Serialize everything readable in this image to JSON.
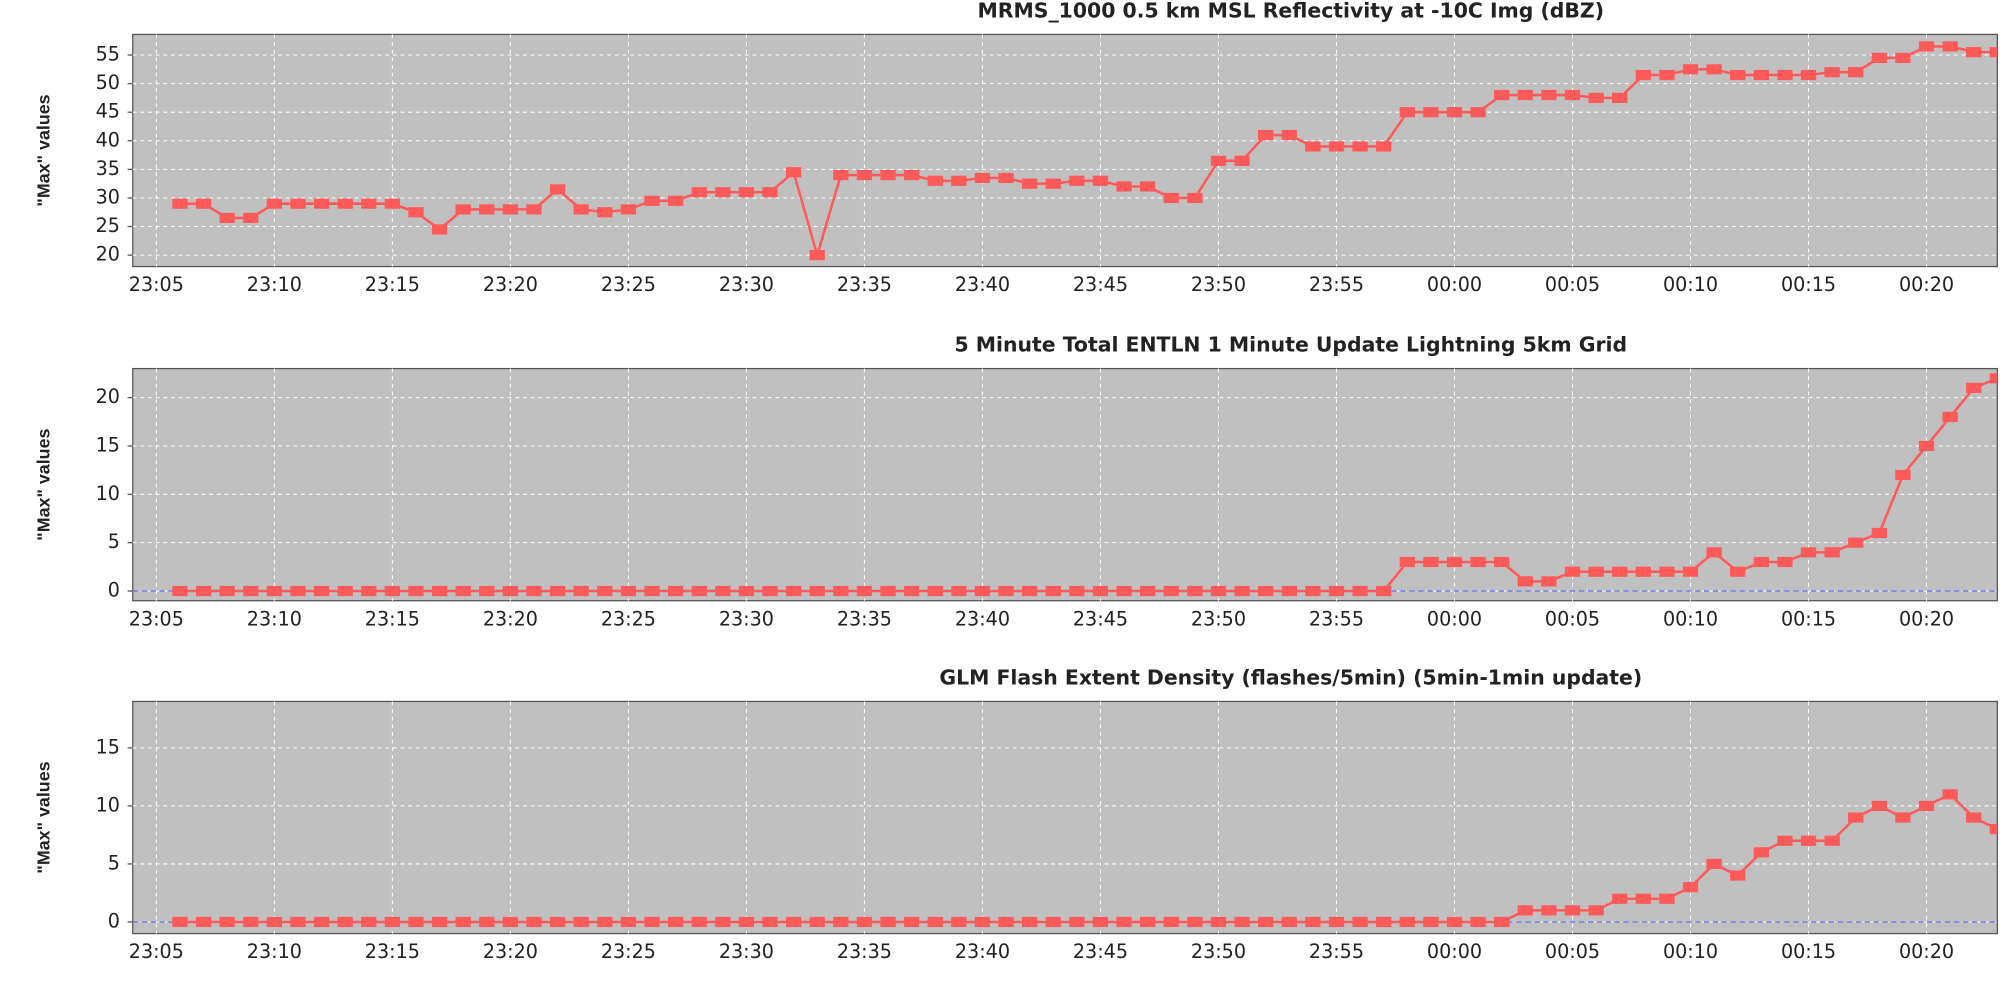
{
  "chart_data": [
    {
      "type": "line",
      "title": "MRMS_1000 0.5 km MSL Reflectivity at -10C Img (dBZ)",
      "y_label": "\"Max\" values",
      "x": [
        "23:06",
        "23:07",
        "23:08",
        "23:09",
        "23:10",
        "23:11",
        "23:12",
        "23:13",
        "23:14",
        "23:15",
        "23:16",
        "23:17",
        "23:18",
        "23:19",
        "23:20",
        "23:21",
        "23:22",
        "23:23",
        "23:24",
        "23:25",
        "23:26",
        "23:27",
        "23:28",
        "23:29",
        "23:30",
        "23:31",
        "23:32",
        "23:33",
        "23:34",
        "23:35",
        "23:36",
        "23:37",
        "23:38",
        "23:39",
        "23:40",
        "23:41",
        "23:42",
        "23:43",
        "23:44",
        "23:45",
        "23:46",
        "23:47",
        "23:48",
        "23:49",
        "23:50",
        "23:51",
        "23:52",
        "23:53",
        "23:54",
        "23:55",
        "23:56",
        "23:57",
        "23:58",
        "23:59",
        "00:00",
        "00:01",
        "00:02",
        "00:03",
        "00:04",
        "00:05",
        "00:06",
        "00:07",
        "00:08",
        "00:09",
        "00:10",
        "00:11",
        "00:12",
        "00:13",
        "00:14",
        "00:15",
        "00:16",
        "00:17",
        "00:18",
        "00:19",
        "00:20",
        "00:21",
        "00:22",
        "00:23"
      ],
      "series": [
        {
          "color": "#ff5a5a",
          "values": [
            29,
            29,
            26.5,
            26.5,
            29,
            29,
            29,
            29,
            29,
            29,
            27.5,
            24.5,
            28,
            28,
            28,
            28,
            31.5,
            28,
            27.5,
            28,
            29.5,
            29.5,
            31,
            31,
            31,
            31,
            34.5,
            20,
            34,
            34,
            34,
            34,
            33,
            33,
            33.5,
            33.5,
            32.5,
            32.5,
            33,
            33,
            32,
            32,
            30,
            30,
            36.5,
            36.5,
            41,
            41,
            39,
            39,
            39,
            39,
            45,
            45,
            45,
            45,
            48,
            48,
            48,
            48,
            47.5,
            47.5,
            51.5,
            51.5,
            52.5,
            52.5,
            51.5,
            51.5,
            51.5,
            51.5,
            52,
            52,
            54.5,
            54.5,
            56.5,
            56.5,
            55.5,
            55.5
          ]
        }
      ],
      "xlim": [
        "23:04",
        "00:23"
      ],
      "xticks": [
        "23:05",
        "23:10",
        "23:15",
        "23:20",
        "23:25",
        "23:30",
        "23:35",
        "23:40",
        "23:45",
        "23:50",
        "23:55",
        "00:00",
        "00:05",
        "00:10",
        "00:15",
        "00:20"
      ],
      "ylim": [
        18,
        58.6
      ],
      "yticks": [
        20,
        25,
        30,
        35,
        40,
        45,
        50,
        55
      ],
      "grid": true
    },
    {
      "type": "line",
      "title": "5 Minute Total ENTLN 1 Minute Update Lightning 5km Grid",
      "y_label": "\"Max\" values",
      "x": [
        "23:06",
        "23:07",
        "23:08",
        "23:09",
        "23:10",
        "23:11",
        "23:12",
        "23:13",
        "23:14",
        "23:15",
        "23:16",
        "23:17",
        "23:18",
        "23:19",
        "23:20",
        "23:21",
        "23:22",
        "23:23",
        "23:24",
        "23:25",
        "23:26",
        "23:27",
        "23:28",
        "23:29",
        "23:30",
        "23:31",
        "23:32",
        "23:33",
        "23:34",
        "23:35",
        "23:36",
        "23:37",
        "23:38",
        "23:39",
        "23:40",
        "23:41",
        "23:42",
        "23:43",
        "23:44",
        "23:45",
        "23:46",
        "23:47",
        "23:48",
        "23:49",
        "23:50",
        "23:51",
        "23:52",
        "23:53",
        "23:54",
        "23:55",
        "23:56",
        "23:57",
        "23:58",
        "23:59",
        "00:00",
        "00:01",
        "00:02",
        "00:03",
        "00:04",
        "00:05",
        "00:06",
        "00:07",
        "00:08",
        "00:09",
        "00:10",
        "00:11",
        "00:12",
        "00:13",
        "00:14",
        "00:15",
        "00:16",
        "00:17",
        "00:18",
        "00:19",
        "00:20",
        "00:21",
        "00:22",
        "00:23"
      ],
      "series": [
        {
          "color": "#ff5a5a",
          "values": [
            0,
            0,
            0,
            0,
            0,
            0,
            0,
            0,
            0,
            0,
            0,
            0,
            0,
            0,
            0,
            0,
            0,
            0,
            0,
            0,
            0,
            0,
            0,
            0,
            0,
            0,
            0,
            0,
            0,
            0,
            0,
            0,
            0,
            0,
            0,
            0,
            0,
            0,
            0,
            0,
            0,
            0,
            0,
            0,
            0,
            0,
            0,
            0,
            0,
            0,
            0,
            0,
            3,
            3,
            3,
            3,
            3,
            1,
            1,
            2,
            2,
            2,
            2,
            2,
            2,
            4,
            2,
            3,
            3,
            4,
            4,
            5,
            6,
            12,
            15,
            18,
            21,
            22
          ]
        }
      ],
      "xlim": [
        "23:04",
        "00:23"
      ],
      "xticks": [
        "23:05",
        "23:10",
        "23:15",
        "23:20",
        "23:25",
        "23:30",
        "23:35",
        "23:40",
        "23:45",
        "23:50",
        "23:55",
        "00:00",
        "00:05",
        "00:10",
        "00:15",
        "00:20"
      ],
      "ylim": [
        -1,
        23
      ],
      "yticks": [
        0,
        5,
        10,
        15,
        20
      ],
      "grid": true
    },
    {
      "type": "line",
      "title": "GLM Flash Extent Density (flashes/5min) (5min-1min update)",
      "y_label": "\"Max\" values",
      "x": [
        "23:06",
        "23:07",
        "23:08",
        "23:09",
        "23:10",
        "23:11",
        "23:12",
        "23:13",
        "23:14",
        "23:15",
        "23:16",
        "23:17",
        "23:18",
        "23:19",
        "23:20",
        "23:21",
        "23:22",
        "23:23",
        "23:24",
        "23:25",
        "23:26",
        "23:27",
        "23:28",
        "23:29",
        "23:30",
        "23:31",
        "23:32",
        "23:33",
        "23:34",
        "23:35",
        "23:36",
        "23:37",
        "23:38",
        "23:39",
        "23:40",
        "23:41",
        "23:42",
        "23:43",
        "23:44",
        "23:45",
        "23:46",
        "23:47",
        "23:48",
        "23:49",
        "23:50",
        "23:51",
        "23:52",
        "23:53",
        "23:54",
        "23:55",
        "23:56",
        "23:57",
        "23:58",
        "23:59",
        "00:00",
        "00:01",
        "00:02",
        "00:03",
        "00:04",
        "00:05",
        "00:06",
        "00:07",
        "00:08",
        "00:09",
        "00:10",
        "00:11",
        "00:12",
        "00:13",
        "00:14",
        "00:15",
        "00:16",
        "00:17",
        "00:18",
        "00:19",
        "00:20",
        "00:21",
        "00:22",
        "00:23"
      ],
      "series": [
        {
          "color": "#ff5a5a",
          "values": [
            0,
            0,
            0,
            0,
            0,
            0,
            0,
            0,
            0,
            0,
            0,
            0,
            0,
            0,
            0,
            0,
            0,
            0,
            0,
            0,
            0,
            0,
            0,
            0,
            0,
            0,
            0,
            0,
            0,
            0,
            0,
            0,
            0,
            0,
            0,
            0,
            0,
            0,
            0,
            0,
            0,
            0,
            0,
            0,
            0,
            0,
            0,
            0,
            0,
            0,
            0,
            0,
            0,
            0,
            0,
            0,
            0,
            1,
            1,
            1,
            1,
            2,
            2,
            2,
            3,
            5,
            4,
            6,
            7,
            7,
            7,
            9,
            10,
            9,
            10,
            11,
            9,
            8
          ]
        }
      ],
      "xlim": [
        "23:04",
        "00:23"
      ],
      "xticks": [
        "23:05",
        "23:10",
        "23:15",
        "23:20",
        "23:25",
        "23:30",
        "23:35",
        "23:40",
        "23:45",
        "23:50",
        "23:55",
        "00:00",
        "00:05",
        "00:10",
        "00:15",
        "00:20"
      ],
      "ylim": [
        -1,
        19
      ],
      "yticks": [
        0,
        5,
        10,
        15
      ],
      "grid": true
    }
  ]
}
